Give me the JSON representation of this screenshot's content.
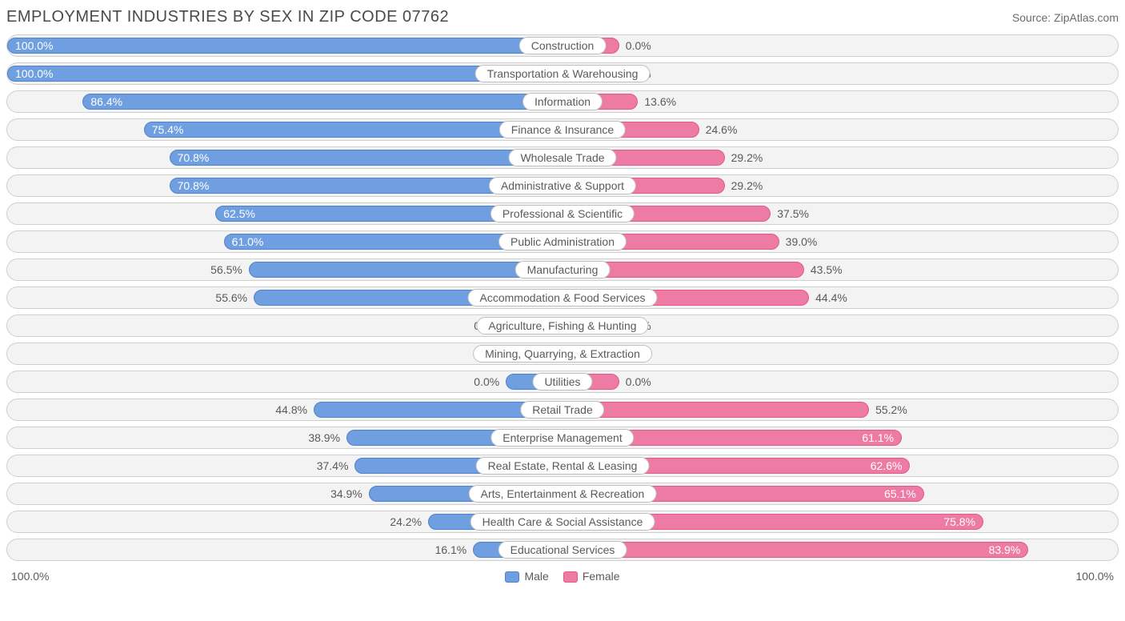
{
  "header": {
    "title": "EMPLOYMENT INDUSTRIES BY SEX IN ZIP CODE 07762",
    "source": "Source: ZipAtlas.com"
  },
  "chart": {
    "type": "diverging-bar",
    "colors": {
      "male_fill": "#6f9fe0",
      "male_border": "#4f82c9",
      "female_fill": "#ee7ba3",
      "female_border": "#e05a8a",
      "track_fill": "#f3f3f3",
      "track_border": "#cfcfcf",
      "pill_fill": "#ffffff",
      "pill_border": "#bfbfbf",
      "text": "#5a5a5a",
      "title_text": "#4a4a4a"
    },
    "axis": {
      "left_label": "100.0%",
      "right_label": "100.0%"
    },
    "legend": {
      "male": "Male",
      "female": "Female"
    },
    "zero_stub_pct": 10.2,
    "rows": [
      {
        "label": "Construction",
        "male": 100.0,
        "female": 0.0,
        "male_label_inside": true
      },
      {
        "label": "Transportation & Warehousing",
        "male": 100.0,
        "female": 0.0,
        "male_label_inside": true
      },
      {
        "label": "Information",
        "male": 86.4,
        "female": 13.6,
        "male_label_inside": true
      },
      {
        "label": "Finance & Insurance",
        "male": 75.4,
        "female": 24.6,
        "male_label_inside": true
      },
      {
        "label": "Wholesale Trade",
        "male": 70.8,
        "female": 29.2,
        "male_label_inside": true
      },
      {
        "label": "Administrative & Support",
        "male": 70.8,
        "female": 29.2,
        "male_label_inside": true
      },
      {
        "label": "Professional & Scientific",
        "male": 62.5,
        "female": 37.5,
        "male_label_inside": true
      },
      {
        "label": "Public Administration",
        "male": 61.0,
        "female": 39.0,
        "male_label_inside": true
      },
      {
        "label": "Manufacturing",
        "male": 56.5,
        "female": 43.5
      },
      {
        "label": "Accommodation & Food Services",
        "male": 55.6,
        "female": 44.4
      },
      {
        "label": "Agriculture, Fishing & Hunting",
        "male": 0.0,
        "female": 0.0
      },
      {
        "label": "Mining, Quarrying, & Extraction",
        "male": 0.0,
        "female": 0.0
      },
      {
        "label": "Utilities",
        "male": 0.0,
        "female": 0.0
      },
      {
        "label": "Retail Trade",
        "male": 44.8,
        "female": 55.2
      },
      {
        "label": "Enterprise Management",
        "male": 38.9,
        "female": 61.1,
        "female_label_inside": true
      },
      {
        "label": "Real Estate, Rental & Leasing",
        "male": 37.4,
        "female": 62.6,
        "female_label_inside": true
      },
      {
        "label": "Arts, Entertainment & Recreation",
        "male": 34.9,
        "female": 65.1,
        "female_label_inside": true
      },
      {
        "label": "Health Care & Social Assistance",
        "male": 24.2,
        "female": 75.8,
        "female_label_inside": true
      },
      {
        "label": "Educational Services",
        "male": 16.1,
        "female": 83.9,
        "female_label_inside": true
      }
    ]
  }
}
